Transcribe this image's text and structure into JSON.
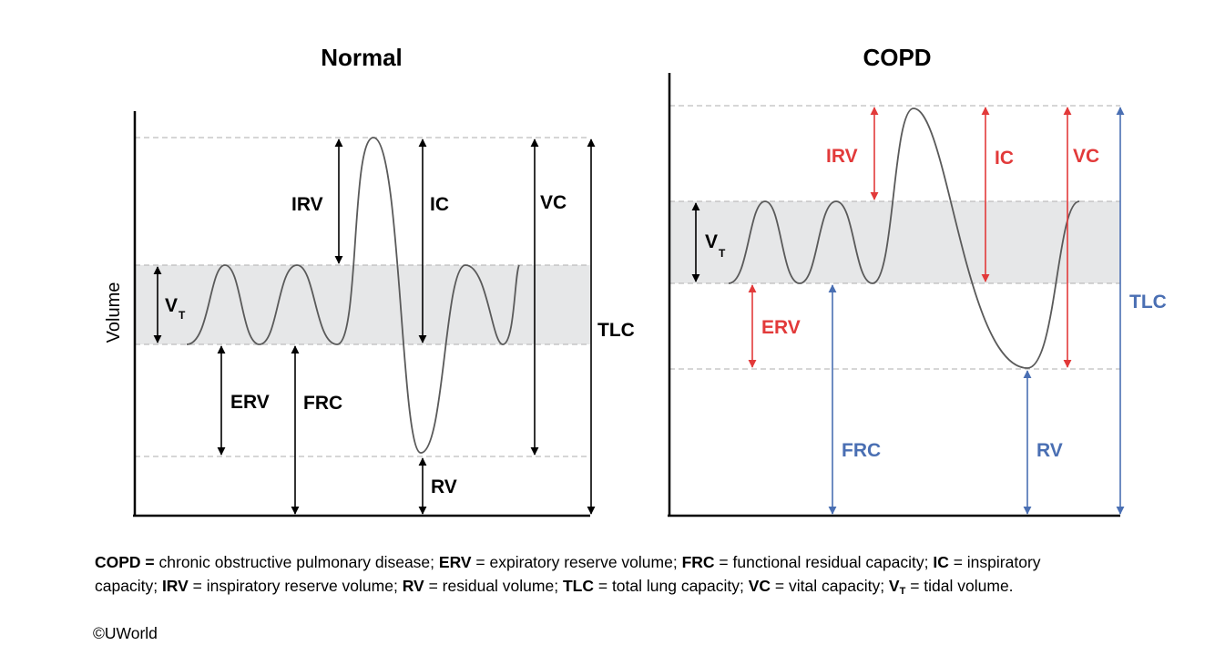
{
  "colors": {
    "black": "#000000",
    "red": "#e23a3a",
    "blue": "#4a6fb3",
    "band": "#e6e7e8",
    "dash": "#bdbdbd",
    "curve": "#5a5a5a"
  },
  "normal": {
    "title": "Normal",
    "y_axis_label": "Volume",
    "labels": {
      "irv": "IRV",
      "ic": "IC",
      "vc": "VC",
      "tlc": "TLC",
      "vt": "V",
      "vt_sub": "T",
      "erv": "ERV",
      "frc": "FRC",
      "rv": "RV"
    }
  },
  "copd": {
    "title": "COPD",
    "labels": {
      "irv": "IRV",
      "ic": "IC",
      "vc": "VC",
      "tlc": "TLC",
      "vt": "V",
      "vt_sub": "T",
      "erv": "ERV",
      "frc": "FRC",
      "rv": "RV"
    }
  },
  "legend": {
    "items": [
      {
        "abbr": "COPD",
        "sep": " = ",
        "def": "chronic obstructive pulmonary disease; "
      },
      {
        "abbr": "ERV",
        "sep": " = ",
        "def": "expiratory reserve volume; "
      },
      {
        "abbr": "FRC",
        "sep": " = ",
        "def": "functional residual capacity; "
      },
      {
        "abbr": "IC",
        "sep": " = ",
        "def": "inspiratory capacity; "
      },
      {
        "abbr": "IRV",
        "sep": " = ",
        "def": "inspiratory reserve volume;  "
      },
      {
        "abbr": "RV",
        "sep": " = ",
        "def": "residual volume; "
      },
      {
        "abbr": "TLC",
        "sep": " = ",
        "def": "total lung capacity; "
      },
      {
        "abbr": "VC",
        "sep": " = ",
        "def": "vital capacity; "
      },
      {
        "abbr": "V",
        "sub": "T",
        "sep": " = ",
        "def": "tidal volume."
      }
    ]
  },
  "copyright": "©UWorld"
}
